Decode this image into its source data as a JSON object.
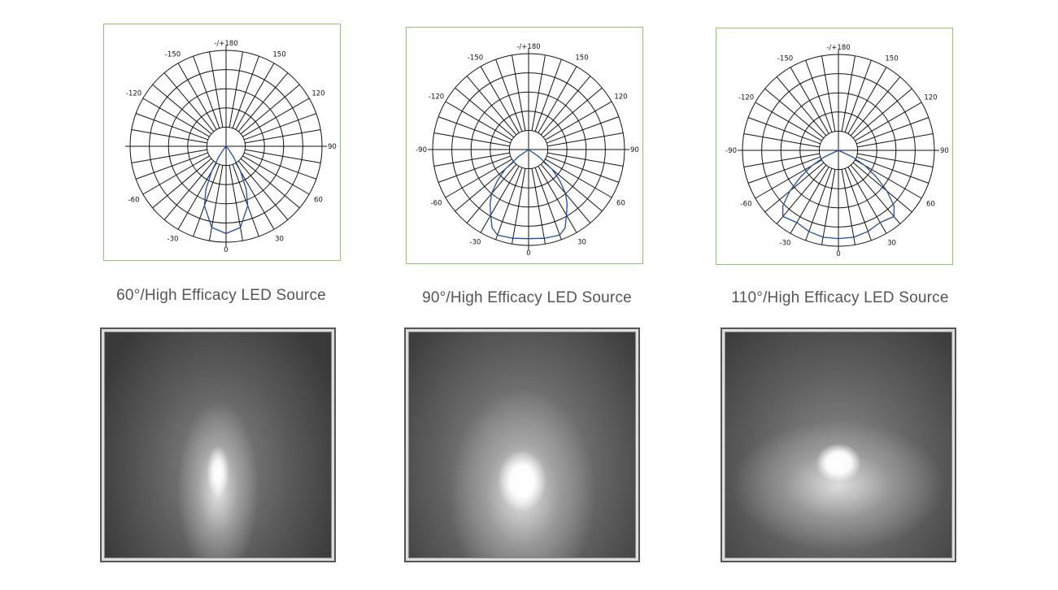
{
  "chart_data": [
    {
      "type": "polar",
      "title": "",
      "angle_tick_labels": [
        "-/+180",
        "-150",
        "150",
        "-120",
        "120",
        "90",
        "-60",
        "60",
        "-30",
        "30",
        "0"
      ],
      "grid": true,
      "rings": 5,
      "spoke_step_deg": 10,
      "series_color": "#1f4e9c",
      "symmetric": true,
      "angles_deg": [
        0,
        10,
        20,
        25,
        30,
        35,
        40,
        45
      ],
      "intensity_relative": [
        0.91,
        0.86,
        0.66,
        0.5,
        0.3,
        0.13,
        0.03,
        0
      ]
    },
    {
      "type": "polar",
      "title": "",
      "angle_tick_labels": [
        "-/+180",
        "-150",
        "150",
        "-120",
        "120",
        "-90",
        "90",
        "-60",
        "60",
        "-30",
        "30",
        "0"
      ],
      "grid": true,
      "rings": 5,
      "spoke_step_deg": 10,
      "series_color": "#1f4e9c",
      "symmetric": true,
      "angles_deg": [
        0,
        10,
        20,
        25,
        30,
        35,
        40,
        45,
        50,
        55,
        60
      ],
      "intensity_relative": [
        0.93,
        0.94,
        0.95,
        0.9,
        0.79,
        0.7,
        0.6,
        0.46,
        0.32,
        0.13,
        0
      ]
    },
    {
      "type": "polar",
      "title": "",
      "angle_tick_labels": [
        "-/+180",
        "-150",
        "150",
        "-120",
        "120",
        "-90",
        "90",
        "-60",
        "60",
        "-30",
        "30",
        "0"
      ],
      "grid": true,
      "rings": 5,
      "spoke_step_deg": 10,
      "series_color": "#1f4e9c",
      "symmetric": true,
      "angles_deg": [
        0,
        10,
        20,
        25,
        30,
        35,
        40,
        45,
        50,
        55,
        60,
        65,
        70
      ],
      "intensity_relative": [
        0.92,
        0.92,
        0.9,
        0.88,
        0.87,
        0.88,
        0.9,
        0.82,
        0.66,
        0.48,
        0.32,
        0.16,
        0
      ]
    }
  ],
  "captions": [
    "60°/High Efficacy LED Source",
    "90°/High Efficacy LED Source",
    "110°/High Efficacy LED Source"
  ],
  "colors": {
    "chart_border": "#8cc96a",
    "curve": "#1f4e9c",
    "caption": "#555555"
  }
}
